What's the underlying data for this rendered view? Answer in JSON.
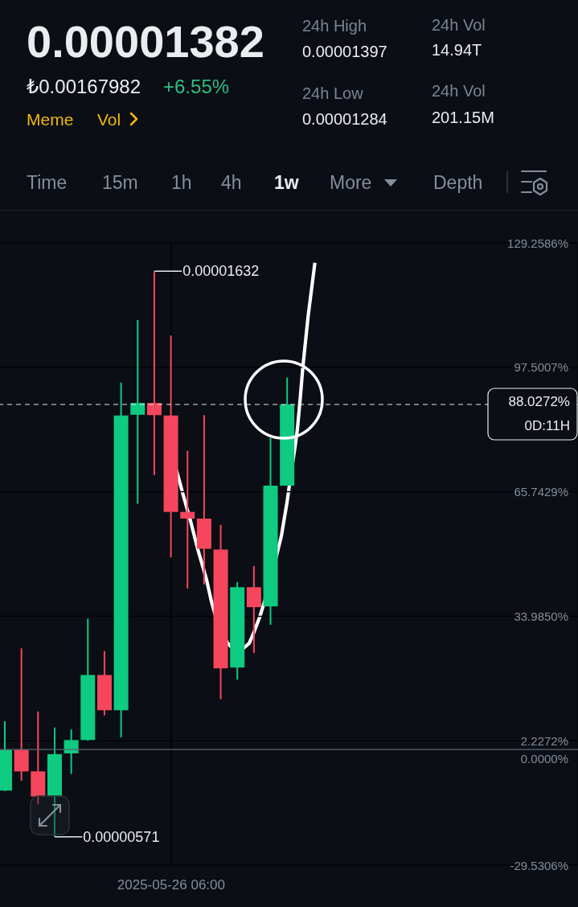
{
  "chart_data": {
    "type": "candlestick",
    "title": "0.00001382",
    "categories": [
      null,
      null,
      null,
      null,
      null,
      null,
      null,
      null,
      null,
      null,
      "2025-05-26 06:00",
      null,
      null,
      null,
      null,
      null,
      null,
      null,
      null,
      null,
      null,
      null,
      null,
      null,
      null,
      null,
      null,
      null,
      null,
      null,
      null,
      null,
      null,
      null,
      null
    ],
    "ohlc": [
      [
        -10.5,
        7.2,
        -10.6,
        -0.1
      ],
      [
        -0.1,
        25.8,
        -8.0,
        -5.6
      ],
      [
        -5.6,
        9.7,
        -14.0,
        -12.0
      ],
      [
        -12.0,
        5.6,
        -22.31,
        -1.2
      ],
      [
        -1.0,
        5.1,
        -6.2,
        2.4
      ],
      [
        2.4,
        33.4,
        2.2,
        19.0
      ],
      [
        19.0,
        25.1,
        8.7,
        10.0
      ],
      [
        10.0,
        93.6,
        3.1,
        85.2
      ],
      [
        85.4,
        109.6,
        62.7,
        88.4
      ],
      [
        88.4,
        122.04,
        70.0,
        85.3
      ],
      [
        85.2,
        105.6,
        49.0,
        60.6
      ],
      [
        60.6,
        76.2,
        41.1,
        58.9
      ],
      [
        58.9,
        85.3,
        42.1,
        51.2
      ],
      [
        51.0,
        57.3,
        12.8,
        20.7
      ],
      [
        20.9,
        42.7,
        17.8,
        41.4
      ],
      [
        41.4,
        46.8,
        24.6,
        36.3
      ],
      [
        36.5,
        79.5,
        31.8,
        67.3
      ],
      [
        67.3,
        94.9,
        67.3,
        88.0272
      ],
      null,
      null,
      null,
      null,
      null,
      null,
      null,
      null,
      null,
      null,
      null,
      null,
      null,
      null,
      null,
      null,
      null
    ],
    "colors": [
      "#0ecb81",
      "#f6465d",
      "#f6465d",
      "#0ecb81",
      "#0ecb81",
      "#0ecb81",
      "#f6465d",
      "#0ecb81",
      "#0ecb81",
      "#f6465d",
      "#f6465d",
      "#f6465d",
      "#f6465d",
      "#f6465d",
      "#0ecb81",
      "#f6465d",
      "#0ecb81",
      "#0ecb81",
      null,
      null,
      null,
      null,
      null,
      null,
      null,
      null,
      null,
      null,
      null,
      null,
      null,
      null,
      null,
      null,
      null
    ],
    "ylim": [
      -29.5306,
      129.2586
    ],
    "yticks": [
      {
        "value": 129.2586,
        "label": "129.2586%"
      },
      {
        "value": 97.5007,
        "label": "97.5007%"
      },
      {
        "value": 65.7429,
        "label": "65.7429%"
      },
      {
        "value": 33.985,
        "label": "33.9850%"
      },
      {
        "value": 2.2272,
        "label": "2.2272%"
      },
      {
        "value": -29.5306,
        "label": "-29.5306%"
      }
    ],
    "grid": true,
    "ref_lines": [
      {
        "axis": "y",
        "value": 0,
        "label": "0.0000%",
        "color": "#5e6673"
      },
      {
        "axis": "y",
        "value": 88.0272,
        "label": "88.0272%",
        "color": "#eaecef",
        "line_style": "dashed"
      }
    ],
    "annotations": [
      "₺0.00167982",
      "+6.55%",
      "Meme",
      "Vol",
      "24h High",
      "0.00001397",
      "24h Low",
      "0.00001284",
      "24h Vol",
      "14.94T",
      "24h Vol",
      "201.15M",
      "Time",
      "15m",
      "1h",
      "4h",
      "1w",
      "More",
      "Depth",
      "0D:11H",
      "0.00001632",
      "0.00000571"
    ]
  }
}
